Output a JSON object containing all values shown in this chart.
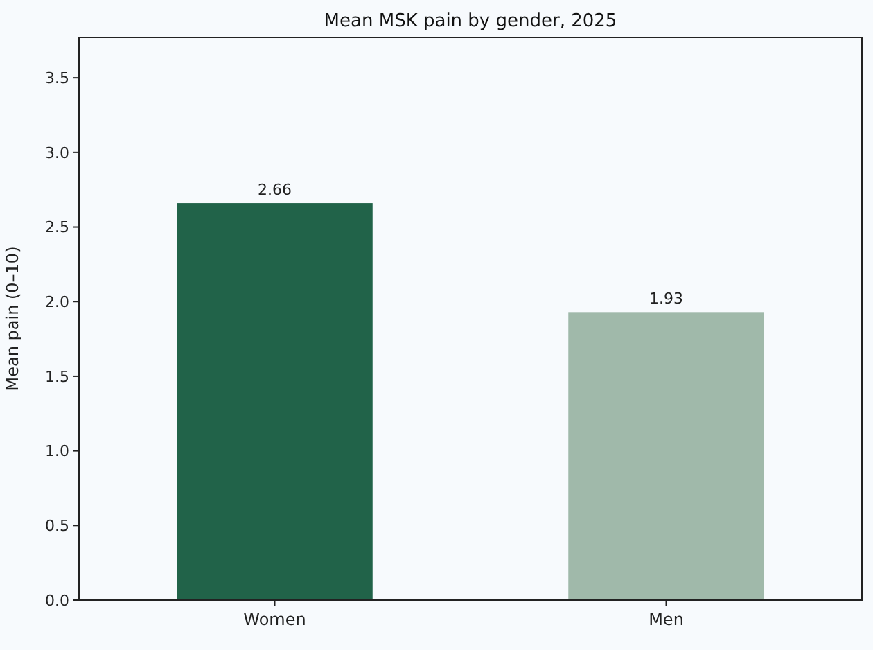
{
  "chart_data": {
    "type": "bar",
    "title": "Mean MSK pain by gender, 2025",
    "ylabel": "Mean pain (0–10)",
    "categories": [
      "Women",
      "Men"
    ],
    "values": [
      2.66,
      1.93
    ],
    "colors": [
      "#216349",
      "#a0b9aa"
    ],
    "ylim": [
      0,
      3.77
    ],
    "yticks": [
      {
        "value": 0,
        "label": "0.0"
      },
      0.5,
      {
        "value": 1,
        "label": "1.0"
      },
      1.5,
      {
        "value": 2,
        "label": "2.0"
      },
      2.5,
      {
        "value": 3,
        "label": "3.0"
      },
      3.5
    ],
    "data_labels": true
  }
}
